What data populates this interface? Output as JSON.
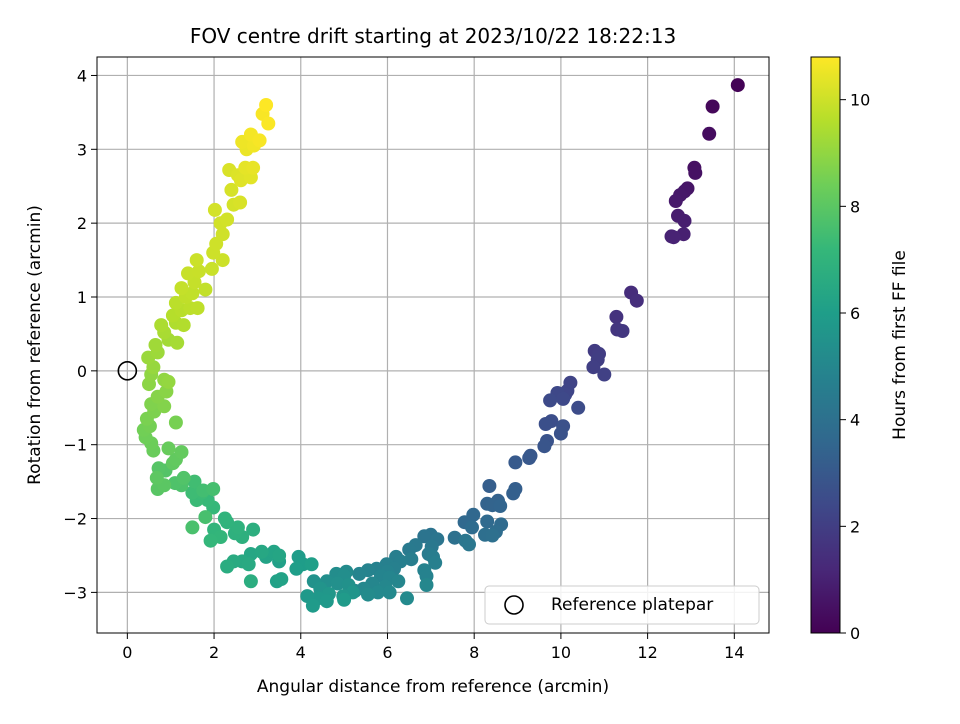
{
  "chart_data": {
    "type": "scatter",
    "title": "FOV centre drift starting at 2023/10/22 18:22:13",
    "xlabel": "Angular distance from reference (arcmin)",
    "ylabel": "Rotation from reference (arcmin)",
    "xlim": [
      -0.7,
      14.8
    ],
    "ylim": [
      -3.55,
      4.25
    ],
    "xticks": [
      0,
      2,
      4,
      6,
      8,
      10,
      12,
      14
    ],
    "yticks": [
      -3,
      -2,
      -1,
      0,
      1,
      2,
      3,
      4
    ],
    "grid": true,
    "legend": {
      "placement": "lower-right",
      "entries": [
        "Reference platepar"
      ]
    },
    "reference_point": {
      "x": 0,
      "y": 0,
      "label": "Reference platepar"
    },
    "colorbar": {
      "label": "Hours from first FF file",
      "range": [
        0,
        10.8
      ],
      "ticks": [
        0,
        2,
        4,
        6,
        8,
        10
      ],
      "colormap": "viridis",
      "stops": [
        "#440154",
        "#482878",
        "#3e4989",
        "#31688e",
        "#26828e",
        "#1f9e89",
        "#35b779",
        "#6ece58",
        "#b5de2b",
        "#fde725"
      ]
    },
    "color_variable": "hours",
    "points": [
      {
        "x": 14.08,
        "y": 3.87,
        "h": 0.05
      },
      {
        "x": 13.5,
        "y": 3.58,
        "h": 0.2
      },
      {
        "x": 13.42,
        "y": 3.21,
        "h": 0.35
      },
      {
        "x": 13.08,
        "y": 2.75,
        "h": 0.45
      },
      {
        "x": 13.1,
        "y": 2.68,
        "h": 0.5
      },
      {
        "x": 12.92,
        "y": 2.47,
        "h": 0.6
      },
      {
        "x": 12.85,
        "y": 2.43,
        "h": 0.65
      },
      {
        "x": 12.75,
        "y": 2.38,
        "h": 0.7
      },
      {
        "x": 12.65,
        "y": 2.3,
        "h": 0.75
      },
      {
        "x": 12.7,
        "y": 2.1,
        "h": 0.85
      },
      {
        "x": 12.85,
        "y": 2.03,
        "h": 0.9
      },
      {
        "x": 12.83,
        "y": 1.85,
        "h": 0.95
      },
      {
        "x": 12.55,
        "y": 1.82,
        "h": 1.0
      },
      {
        "x": 12.6,
        "y": 1.81,
        "h": 1.05
      },
      {
        "x": 11.62,
        "y": 1.06,
        "h": 1.4
      },
      {
        "x": 11.75,
        "y": 0.95,
        "h": 1.45
      },
      {
        "x": 11.28,
        "y": 0.73,
        "h": 1.6
      },
      {
        "x": 11.3,
        "y": 0.56,
        "h": 1.7
      },
      {
        "x": 11.42,
        "y": 0.54,
        "h": 1.75
      },
      {
        "x": 10.78,
        "y": 0.27,
        "h": 1.9
      },
      {
        "x": 10.88,
        "y": 0.23,
        "h": 1.95
      },
      {
        "x": 10.85,
        "y": 0.15,
        "h": 2.0
      },
      {
        "x": 10.75,
        "y": 0.05,
        "h": 2.05
      },
      {
        "x": 11.0,
        "y": -0.05,
        "h": 2.1
      },
      {
        "x": 10.22,
        "y": -0.16,
        "h": 2.2
      },
      {
        "x": 10.15,
        "y": -0.27,
        "h": 2.25
      },
      {
        "x": 10.1,
        "y": -0.32,
        "h": 2.3
      },
      {
        "x": 9.92,
        "y": -0.3,
        "h": 2.35
      },
      {
        "x": 10.05,
        "y": -0.38,
        "h": 2.4
      },
      {
        "x": 9.75,
        "y": -0.4,
        "h": 2.45
      },
      {
        "x": 10.4,
        "y": -0.5,
        "h": 2.5
      },
      {
        "x": 9.78,
        "y": -0.68,
        "h": 2.6
      },
      {
        "x": 9.65,
        "y": -0.72,
        "h": 2.65
      },
      {
        "x": 10.05,
        "y": -0.75,
        "h": 2.7
      },
      {
        "x": 10.0,
        "y": -0.85,
        "h": 2.75
      },
      {
        "x": 9.68,
        "y": -0.95,
        "h": 2.8
      },
      {
        "x": 9.62,
        "y": -1.02,
        "h": 2.85
      },
      {
        "x": 9.3,
        "y": -1.15,
        "h": 2.95
      },
      {
        "x": 9.27,
        "y": -1.18,
        "h": 3.0
      },
      {
        "x": 8.95,
        "y": -1.24,
        "h": 3.05
      },
      {
        "x": 8.35,
        "y": -1.56,
        "h": 3.2
      },
      {
        "x": 8.95,
        "y": -1.6,
        "h": 3.25
      },
      {
        "x": 8.9,
        "y": -1.66,
        "h": 3.3
      },
      {
        "x": 8.55,
        "y": -1.76,
        "h": 3.35
      },
      {
        "x": 8.3,
        "y": -1.8,
        "h": 3.4
      },
      {
        "x": 8.42,
        "y": -1.82,
        "h": 3.45
      },
      {
        "x": 8.6,
        "y": -1.83,
        "h": 3.5
      },
      {
        "x": 7.98,
        "y": -1.95,
        "h": 3.6
      },
      {
        "x": 7.78,
        "y": -2.05,
        "h": 3.65
      },
      {
        "x": 8.3,
        "y": -2.04,
        "h": 3.7
      },
      {
        "x": 8.62,
        "y": -2.08,
        "h": 3.75
      },
      {
        "x": 7.95,
        "y": -2.12,
        "h": 3.8
      },
      {
        "x": 8.5,
        "y": -2.18,
        "h": 3.85
      },
      {
        "x": 8.25,
        "y": -2.22,
        "h": 3.9
      },
      {
        "x": 8.42,
        "y": -2.23,
        "h": 3.95
      },
      {
        "x": 7.55,
        "y": -2.26,
        "h": 4.0
      },
      {
        "x": 7.0,
        "y": -2.22,
        "h": 4.1
      },
      {
        "x": 6.85,
        "y": -2.24,
        "h": 4.15
      },
      {
        "x": 7.15,
        "y": -2.28,
        "h": 4.2
      },
      {
        "x": 7.8,
        "y": -2.3,
        "h": 4.25
      },
      {
        "x": 7.88,
        "y": -2.35,
        "h": 4.3
      },
      {
        "x": 7.02,
        "y": -2.38,
        "h": 4.35
      },
      {
        "x": 6.65,
        "y": -2.36,
        "h": 4.4
      },
      {
        "x": 6.5,
        "y": -2.42,
        "h": 4.45
      },
      {
        "x": 6.95,
        "y": -2.48,
        "h": 4.5
      },
      {
        "x": 7.05,
        "y": -2.52,
        "h": 4.55
      },
      {
        "x": 6.2,
        "y": -2.52,
        "h": 4.6
      },
      {
        "x": 6.55,
        "y": -2.55,
        "h": 4.62
      },
      {
        "x": 7.1,
        "y": -2.6,
        "h": 4.65
      },
      {
        "x": 6.3,
        "y": -2.58,
        "h": 4.68
      },
      {
        "x": 5.98,
        "y": -2.62,
        "h": 4.7
      },
      {
        "x": 6.15,
        "y": -2.68,
        "h": 4.72
      },
      {
        "x": 5.75,
        "y": -2.68,
        "h": 4.75
      },
      {
        "x": 6.85,
        "y": -2.7,
        "h": 4.78
      },
      {
        "x": 6.0,
        "y": -2.72,
        "h": 4.8
      },
      {
        "x": 6.9,
        "y": -2.78,
        "h": 4.82
      },
      {
        "x": 5.55,
        "y": -2.7,
        "h": 4.85
      },
      {
        "x": 5.35,
        "y": -2.75,
        "h": 4.88
      },
      {
        "x": 5.85,
        "y": -2.78,
        "h": 4.9
      },
      {
        "x": 6.05,
        "y": -2.8,
        "h": 4.92
      },
      {
        "x": 6.25,
        "y": -2.85,
        "h": 4.95
      },
      {
        "x": 5.65,
        "y": -2.88,
        "h": 4.97
      },
      {
        "x": 6.9,
        "y": -2.9,
        "h": 5.0
      },
      {
        "x": 5.95,
        "y": -2.92,
        "h": 5.02
      },
      {
        "x": 5.45,
        "y": -2.95,
        "h": 5.05
      },
      {
        "x": 5.25,
        "y": -2.98,
        "h": 5.08
      },
      {
        "x": 5.78,
        "y": -3.0,
        "h": 5.1
      },
      {
        "x": 6.05,
        "y": -3.0,
        "h": 5.12
      },
      {
        "x": 6.45,
        "y": -3.08,
        "h": 5.15
      },
      {
        "x": 5.55,
        "y": -3.03,
        "h": 5.18
      },
      {
        "x": 5.05,
        "y": -2.72,
        "h": 5.2
      },
      {
        "x": 4.82,
        "y": -2.75,
        "h": 5.25
      },
      {
        "x": 5.0,
        "y": -2.78,
        "h": 5.3
      },
      {
        "x": 4.6,
        "y": -2.85,
        "h": 5.35
      },
      {
        "x": 4.85,
        "y": -2.88,
        "h": 5.4
      },
      {
        "x": 5.1,
        "y": -2.9,
        "h": 5.45
      },
      {
        "x": 4.3,
        "y": -2.85,
        "h": 5.5
      },
      {
        "x": 4.45,
        "y": -2.95,
        "h": 5.55
      },
      {
        "x": 5.2,
        "y": -3.0,
        "h": 5.6
      },
      {
        "x": 4.98,
        "y": -3.05,
        "h": 5.65
      },
      {
        "x": 4.65,
        "y": -3.02,
        "h": 5.7
      },
      {
        "x": 4.4,
        "y": -3.08,
        "h": 5.75
      },
      {
        "x": 4.15,
        "y": -3.05,
        "h": 5.78
      },
      {
        "x": 4.6,
        "y": -3.12,
        "h": 5.8
      },
      {
        "x": 4.28,
        "y": -3.18,
        "h": 5.85
      },
      {
        "x": 5.0,
        "y": -3.1,
        "h": 5.88
      },
      {
        "x": 3.95,
        "y": -2.52,
        "h": 5.9
      },
      {
        "x": 4.05,
        "y": -2.62,
        "h": 5.95
      },
      {
        "x": 3.9,
        "y": -2.68,
        "h": 6.0
      },
      {
        "x": 4.25,
        "y": -2.62,
        "h": 6.05
      },
      {
        "x": 3.5,
        "y": -2.58,
        "h": 6.1
      },
      {
        "x": 3.45,
        "y": -2.85,
        "h": 6.15
      },
      {
        "x": 3.55,
        "y": -2.82,
        "h": 6.2
      },
      {
        "x": 3.2,
        "y": -2.52,
        "h": 6.25
      },
      {
        "x": 3.38,
        "y": -2.45,
        "h": 6.3
      },
      {
        "x": 3.5,
        "y": -2.5,
        "h": 6.35
      },
      {
        "x": 2.85,
        "y": -2.48,
        "h": 6.4
      },
      {
        "x": 3.1,
        "y": -2.45,
        "h": 6.45
      },
      {
        "x": 2.65,
        "y": -2.58,
        "h": 6.5
      },
      {
        "x": 2.8,
        "y": -2.62,
        "h": 6.55
      },
      {
        "x": 2.45,
        "y": -2.58,
        "h": 6.6
      },
      {
        "x": 2.3,
        "y": -2.65,
        "h": 6.65
      },
      {
        "x": 2.85,
        "y": -2.85,
        "h": 6.7
      },
      {
        "x": 2.9,
        "y": -2.15,
        "h": 6.75
      },
      {
        "x": 2.65,
        "y": -2.25,
        "h": 6.8
      },
      {
        "x": 2.48,
        "y": -2.2,
        "h": 6.85
      },
      {
        "x": 2.55,
        "y": -2.12,
        "h": 6.9
      },
      {
        "x": 2.3,
        "y": -2.05,
        "h": 6.95
      },
      {
        "x": 2.25,
        "y": -2.0,
        "h": 7.0
      },
      {
        "x": 2.0,
        "y": -2.15,
        "h": 7.05
      },
      {
        "x": 2.15,
        "y": -2.25,
        "h": 7.1
      },
      {
        "x": 1.92,
        "y": -2.3,
        "h": 7.15
      },
      {
        "x": 1.98,
        "y": -1.85,
        "h": 7.2
      },
      {
        "x": 1.85,
        "y": -1.75,
        "h": 7.25
      },
      {
        "x": 1.6,
        "y": -1.75,
        "h": 7.3
      },
      {
        "x": 1.72,
        "y": -1.65,
        "h": 7.35
      },
      {
        "x": 1.5,
        "y": -1.65,
        "h": 7.4
      },
      {
        "x": 1.55,
        "y": -1.5,
        "h": 7.45
      },
      {
        "x": 1.75,
        "y": -1.62,
        "h": 7.5
      },
      {
        "x": 1.98,
        "y": -1.6,
        "h": 7.55
      },
      {
        "x": 1.8,
        "y": -1.98,
        "h": 7.6
      },
      {
        "x": 1.5,
        "y": -2.12,
        "h": 7.65
      },
      {
        "x": 1.25,
        "y": -1.55,
        "h": 7.7
      },
      {
        "x": 1.1,
        "y": -1.52,
        "h": 7.75
      },
      {
        "x": 1.3,
        "y": -1.45,
        "h": 7.8
      },
      {
        "x": 0.88,
        "y": -1.35,
        "h": 7.85
      },
      {
        "x": 0.72,
        "y": -1.32,
        "h": 7.9
      },
      {
        "x": 0.7,
        "y": -1.6,
        "h": 7.95
      },
      {
        "x": 0.85,
        "y": -1.55,
        "h": 8.0
      },
      {
        "x": 0.68,
        "y": -1.45,
        "h": 8.05
      },
      {
        "x": 1.05,
        "y": -1.25,
        "h": 8.1
      },
      {
        "x": 1.12,
        "y": -1.2,
        "h": 8.15
      },
      {
        "x": 1.25,
        "y": -1.1,
        "h": 8.2
      },
      {
        "x": 0.95,
        "y": -1.05,
        "h": 8.25
      },
      {
        "x": 0.6,
        "y": -1.08,
        "h": 8.3
      },
      {
        "x": 0.55,
        "y": -0.98,
        "h": 8.35
      },
      {
        "x": 0.42,
        "y": -0.9,
        "h": 8.4
      },
      {
        "x": 0.38,
        "y": -0.8,
        "h": 8.45
      },
      {
        "x": 0.52,
        "y": -0.75,
        "h": 8.5
      },
      {
        "x": 1.12,
        "y": -0.7,
        "h": 8.55
      },
      {
        "x": 0.45,
        "y": -0.65,
        "h": 8.6
      },
      {
        "x": 0.62,
        "y": -0.55,
        "h": 8.65
      },
      {
        "x": 0.55,
        "y": -0.45,
        "h": 8.7
      },
      {
        "x": 0.85,
        "y": -0.48,
        "h": 8.75
      },
      {
        "x": 0.7,
        "y": -0.35,
        "h": 8.8
      },
      {
        "x": 0.9,
        "y": -0.28,
        "h": 8.85
      },
      {
        "x": 0.5,
        "y": -0.18,
        "h": 8.9
      },
      {
        "x": 0.55,
        "y": -0.05,
        "h": 8.95
      },
      {
        "x": 0.85,
        "y": -0.12,
        "h": 9.0
      },
      {
        "x": 0.95,
        "y": -0.15,
        "h": 9.05
      },
      {
        "x": 0.6,
        "y": 0.05,
        "h": 9.1
      },
      {
        "x": 0.48,
        "y": 0.18,
        "h": 9.15
      },
      {
        "x": 0.7,
        "y": 0.25,
        "h": 9.2
      },
      {
        "x": 0.65,
        "y": 0.35,
        "h": 9.25
      },
      {
        "x": 0.95,
        "y": 0.42,
        "h": 9.3
      },
      {
        "x": 1.15,
        "y": 0.38,
        "h": 9.35
      },
      {
        "x": 0.85,
        "y": 0.52,
        "h": 9.4
      },
      {
        "x": 0.78,
        "y": 0.62,
        "h": 9.45
      },
      {
        "x": 1.12,
        "y": 0.65,
        "h": 9.5
      },
      {
        "x": 1.3,
        "y": 0.62,
        "h": 9.55
      },
      {
        "x": 1.05,
        "y": 0.75,
        "h": 9.6
      },
      {
        "x": 1.25,
        "y": 0.82,
        "h": 9.65
      },
      {
        "x": 1.12,
        "y": 0.92,
        "h": 9.7
      },
      {
        "x": 1.45,
        "y": 0.85,
        "h": 9.72
      },
      {
        "x": 1.62,
        "y": 0.85,
        "h": 9.75
      },
      {
        "x": 1.35,
        "y": 1.0,
        "h": 9.78
      },
      {
        "x": 1.5,
        "y": 1.05,
        "h": 9.8
      },
      {
        "x": 1.8,
        "y": 1.1,
        "h": 9.82
      },
      {
        "x": 1.25,
        "y": 1.12,
        "h": 9.85
      },
      {
        "x": 1.55,
        "y": 1.2,
        "h": 9.87
      },
      {
        "x": 1.4,
        "y": 1.32,
        "h": 9.9
      },
      {
        "x": 1.65,
        "y": 1.35,
        "h": 9.92
      },
      {
        "x": 1.95,
        "y": 1.38,
        "h": 9.94
      },
      {
        "x": 1.6,
        "y": 1.5,
        "h": 9.96
      },
      {
        "x": 2.2,
        "y": 1.5,
        "h": 9.98
      },
      {
        "x": 1.98,
        "y": 1.6,
        "h": 10.0
      },
      {
        "x": 2.05,
        "y": 1.72,
        "h": 10.02
      },
      {
        "x": 2.2,
        "y": 1.85,
        "h": 10.04
      },
      {
        "x": 2.15,
        "y": 2.0,
        "h": 10.06
      },
      {
        "x": 2.3,
        "y": 2.05,
        "h": 10.08
      },
      {
        "x": 2.02,
        "y": 2.18,
        "h": 10.1
      },
      {
        "x": 2.45,
        "y": 2.25,
        "h": 10.12
      },
      {
        "x": 2.4,
        "y": 2.45,
        "h": 10.15
      },
      {
        "x": 2.6,
        "y": 2.28,
        "h": 10.18
      },
      {
        "x": 2.35,
        "y": 2.72,
        "h": 10.2
      },
      {
        "x": 2.55,
        "y": 2.65,
        "h": 10.25
      },
      {
        "x": 2.62,
        "y": 2.58,
        "h": 10.3
      },
      {
        "x": 2.85,
        "y": 2.62,
        "h": 10.35
      },
      {
        "x": 2.72,
        "y": 2.75,
        "h": 10.4
      },
      {
        "x": 2.9,
        "y": 2.75,
        "h": 10.45
      },
      {
        "x": 2.75,
        "y": 3.0,
        "h": 10.5
      },
      {
        "x": 2.65,
        "y": 3.1,
        "h": 10.55
      },
      {
        "x": 2.92,
        "y": 3.05,
        "h": 10.6
      },
      {
        "x": 2.85,
        "y": 3.2,
        "h": 10.65
      },
      {
        "x": 3.05,
        "y": 3.12,
        "h": 10.7
      },
      {
        "x": 3.12,
        "y": 3.48,
        "h": 10.72
      },
      {
        "x": 3.25,
        "y": 3.35,
        "h": 10.75
      },
      {
        "x": 3.2,
        "y": 3.6,
        "h": 10.8
      }
    ]
  }
}
